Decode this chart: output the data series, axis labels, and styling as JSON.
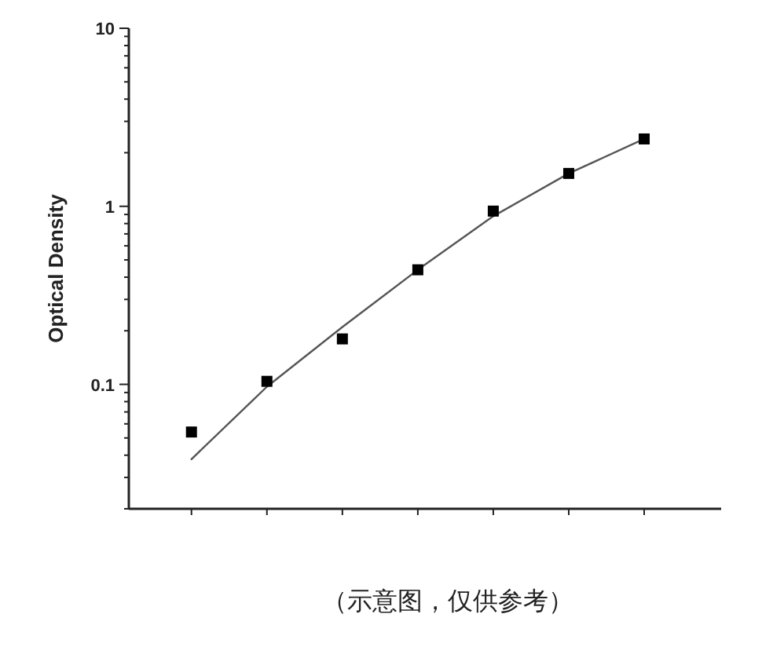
{
  "chart_data": {
    "type": "scatter",
    "ylabel": "Optical Density",
    "annotations": [
      "（示意图，仅供参考）"
    ],
    "categories": [
      null,
      null,
      null,
      null,
      null,
      null,
      null
    ],
    "log": "y",
    "ylim": [
      0.02,
      10
    ],
    "yticks": [
      {
        "value": 0.02,
        "label": null
      },
      {
        "value": 0.03,
        "label": null
      },
      {
        "value": 0.04,
        "label": null
      },
      {
        "value": 0.05,
        "label": null
      },
      {
        "value": 0.06,
        "label": null
      },
      {
        "value": 0.07,
        "label": null
      },
      {
        "value": 0.08,
        "label": null
      },
      {
        "value": 0.09,
        "label": null
      },
      0.1,
      {
        "value": 0.2,
        "label": null
      },
      {
        "value": 0.3,
        "label": null
      },
      {
        "value": 0.4,
        "label": null
      },
      {
        "value": 0.5,
        "label": null
      },
      {
        "value": 0.6,
        "label": null
      },
      {
        "value": 0.7,
        "label": null
      },
      {
        "value": 0.8,
        "label": null
      },
      {
        "value": 0.9,
        "label": null
      },
      1,
      {
        "value": 2,
        "label": null
      },
      {
        "value": 3,
        "label": null
      },
      {
        "value": 4,
        "label": null
      },
      {
        "value": 5,
        "label": null
      },
      {
        "value": 6,
        "label": null
      },
      {
        "value": 7,
        "label": null
      },
      {
        "value": 8,
        "label": null
      },
      {
        "value": 9,
        "label": null
      },
      10
    ],
    "tick_labels": "y",
    "series": [
      {
        "type": "line",
        "color": "#555555",
        "marker": "none",
        "values": [
          0.038,
          0.097,
          0.21,
          0.44,
          0.88,
          1.53,
          2.39
        ]
      },
      {
        "type": "scatter",
        "color": "#000000",
        "marker": "square",
        "values": [
          0.054,
          0.104,
          0.18,
          0.44,
          0.94,
          1.53,
          2.39
        ]
      }
    ]
  }
}
